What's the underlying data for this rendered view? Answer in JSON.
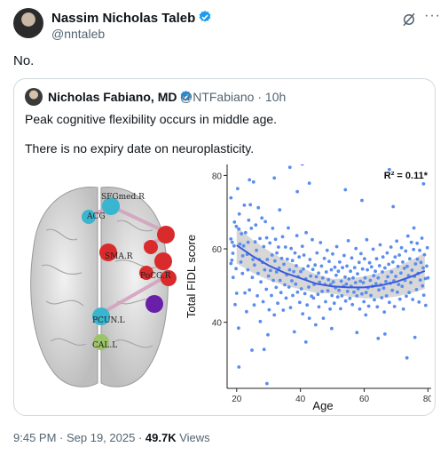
{
  "author": {
    "name": "Nassim Nicholas Taleb",
    "handle": "@nntaleb",
    "verified_color": "#1d9bf0"
  },
  "icons": [
    "verified-badge-icon",
    "grok-icon",
    "more-icon"
  ],
  "tweet": {
    "text": "No."
  },
  "quote": {
    "name": "Nicholas Fabiano, MD",
    "handle": "@NTFabiano",
    "time": "10h",
    "text1": "Peak cognitive flexibility occurs in middle age.",
    "text2": "There is no expiry date on neuroplasticity."
  },
  "brain_labels": [
    "SFGmed.R",
    "ACG",
    "SMA.R",
    "PoCG.R",
    "PCUN.L",
    "CAL.L"
  ],
  "meta": {
    "time": "9:45 PM",
    "date": "Sep 19, 2025",
    "views_count": "49.7K",
    "views_label": "Views"
  },
  "chart_data": {
    "type": "scatter",
    "xlabel": "Age",
    "ylabel": "Total FIDL score",
    "annotation": "R² = 0.11*",
    "xlim": [
      17,
      81
    ],
    "ylim": [
      22,
      83
    ],
    "xticks": [
      20,
      40,
      60,
      80
    ],
    "yticks": [
      40,
      60,
      80
    ],
    "point_color": "#5b8def",
    "fit_color": "#3b5bdb",
    "fit_curve": {
      "x": [
        20,
        25,
        30,
        35,
        40,
        45,
        50,
        55,
        60,
        65,
        70,
        75,
        79
      ],
      "y": [
        61,
        58,
        55.5,
        53.5,
        52,
        50.5,
        49.8,
        49.5,
        49.5,
        50,
        51,
        52.5,
        54
      ]
    },
    "points": [
      [
        18.2,
        56.0
      ],
      [
        18.2,
        62.7
      ],
      [
        18.2,
        73.9
      ],
      [
        18.5,
        56.9
      ],
      [
        18.6,
        61.8
      ],
      [
        18.8,
        58.8
      ],
      [
        18.9,
        52.2
      ],
      [
        19.2,
        60.8
      ],
      [
        19.3,
        67.3
      ],
      [
        19.5,
        44.8
      ],
      [
        19.8,
        54.6
      ],
      [
        19.9,
        66.1
      ],
      [
        20.0,
        47.9
      ],
      [
        20.3,
        76.4
      ],
      [
        20.6,
        38.4
      ],
      [
        20.7,
        65.4
      ],
      [
        20.8,
        69.5
      ],
      [
        21.0,
        61.3
      ],
      [
        21.3,
        56.4
      ],
      [
        21.5,
        64.1
      ],
      [
        21.8,
        53.3
      ],
      [
        21.9,
        58.1
      ],
      [
        22.2,
        60.8
      ],
      [
        22.4,
        71.9
      ],
      [
        22.6,
        48.0
      ],
      [
        22.8,
        64.4
      ],
      [
        23.1,
        42.9
      ],
      [
        23.3,
        58.5
      ],
      [
        23.5,
        54.3
      ],
      [
        23.6,
        61.8
      ],
      [
        23.8,
        67.8
      ],
      [
        24.0,
        48.8
      ],
      [
        24.3,
        72.0
      ],
      [
        24.6,
        65.6
      ],
      [
        24.9,
        52.2
      ],
      [
        25.1,
        57.1
      ],
      [
        25.3,
        78.2
      ],
      [
        25.5,
        44.7
      ],
      [
        25.6,
        55.6
      ],
      [
        25.8,
        61.9
      ],
      [
        26.0,
        66.5
      ],
      [
        26.2,
        59.6
      ],
      [
        26.5,
        47.2
      ],
      [
        26.7,
        53.3
      ],
      [
        26.8,
        71.2
      ],
      [
        27.1,
        57.1
      ],
      [
        27.3,
        62.8
      ],
      [
        27.4,
        40.2
      ],
      [
        27.6,
        51.0
      ],
      [
        27.9,
        68.4
      ],
      [
        28.1,
        56.3
      ],
      [
        28.3,
        45.6
      ],
      [
        28.5,
        60.6
      ],
      [
        28.6,
        32.6
      ],
      [
        28.8,
        54.3
      ],
      [
        29.0,
        67.4
      ],
      [
        29.3,
        49.0
      ],
      [
        29.4,
        63.0
      ],
      [
        29.6,
        57.1
      ],
      [
        29.8,
        36.6
      ],
      [
        30.0,
        52.6
      ],
      [
        30.2,
        43.4
      ],
      [
        30.4,
        61.6
      ],
      [
        30.6,
        54.1
      ],
      [
        30.9,
        47.3
      ],
      [
        31.1,
        58.3
      ],
      [
        31.3,
        65.6
      ],
      [
        31.5,
        51.4
      ],
      [
        31.8,
        42.0
      ],
      [
        32.0,
        56.7
      ],
      [
        32.2,
        62.6
      ],
      [
        32.4,
        49.5
      ],
      [
        32.5,
        53.7
      ],
      [
        32.6,
        58.9
      ],
      [
        32.9,
        45.2
      ],
      [
        33.1,
        60.5
      ],
      [
        33.3,
        54.8
      ],
      [
        33.5,
        70.6
      ],
      [
        33.6,
        51.4
      ],
      [
        33.9,
        48.1
      ],
      [
        34.1,
        57.4
      ],
      [
        34.4,
        63.3
      ],
      [
        34.6,
        43.3
      ],
      [
        34.8,
        55.8
      ],
      [
        35.1,
        50.2
      ],
      [
        35.3,
        60.5
      ],
      [
        35.5,
        46.6
      ],
      [
        35.7,
        52.9
      ],
      [
        35.9,
        57.2
      ],
      [
        36.2,
        65.7
      ],
      [
        36.4,
        49.6
      ],
      [
        36.6,
        54.3
      ],
      [
        36.9,
        44.0
      ],
      [
        37.1,
        60.1
      ],
      [
        37.3,
        51.3
      ],
      [
        37.5,
        56.8
      ],
      [
        37.6,
        47.3
      ],
      [
        37.9,
        53.8
      ],
      [
        38.1,
        37.4
      ],
      [
        38.3,
        58.9
      ],
      [
        38.5,
        50.4
      ],
      [
        38.7,
        55.4
      ],
      [
        38.9,
        63.6
      ],
      [
        39.1,
        48.2
      ],
      [
        39.3,
        52.4
      ],
      [
        39.6,
        57.8
      ],
      [
        39.8,
        45.4
      ],
      [
        40.1,
        53.8
      ],
      [
        40.3,
        49.1
      ],
      [
        40.6,
        60.7
      ],
      [
        40.7,
        42.3
      ],
      [
        40.9,
        54.5
      ],
      [
        41.1,
        58.3
      ],
      [
        41.4,
        47.8
      ],
      [
        41.7,
        51.8
      ],
      [
        41.8,
        64.4
      ],
      [
        42.1,
        44.7
      ],
      [
        42.4,
        55.3
      ],
      [
        42.6,
        49.6
      ],
      [
        42.8,
        41.1
      ],
      [
        43.0,
        57.1
      ],
      [
        43.2,
        52.6
      ],
      [
        43.5,
        47.1
      ],
      [
        43.7,
        62.5
      ],
      [
        43.9,
        54.4
      ],
      [
        44.1,
        46.6
      ],
      [
        44.3,
        50.3
      ],
      [
        44.6,
        55.6
      ],
      [
        44.8,
        39.3
      ],
      [
        45.0,
        52.4
      ],
      [
        45.2,
        58.9
      ],
      [
        45.5,
        47.6
      ],
      [
        45.7,
        53.4
      ],
      [
        45.8,
        44.2
      ],
      [
        46.0,
        50.9
      ],
      [
        46.3,
        61.7
      ],
      [
        46.6,
        55.3
      ],
      [
        46.8,
        48.4
      ],
      [
        47.0,
        52.1
      ],
      [
        47.2,
        41.1
      ],
      [
        47.5,
        57.4
      ],
      [
        47.7,
        50.3
      ],
      [
        47.9,
        45.6
      ],
      [
        48.1,
        53.7
      ],
      [
        48.4,
        59.6
      ],
      [
        48.6,
        48.6
      ],
      [
        48.8,
        51.6
      ],
      [
        49.0,
        56.6
      ],
      [
        49.3,
        43.6
      ],
      [
        49.5,
        50.3
      ],
      [
        49.7,
        54.3
      ],
      [
        49.9,
        47.3
      ],
      [
        50.1,
        58.6
      ],
      [
        50.3,
        51.0
      ],
      [
        50.6,
        45.2
      ],
      [
        50.8,
        55.0
      ],
      [
        51.0,
        49.4
      ],
      [
        51.2,
        52.8
      ],
      [
        51.4,
        60.6
      ],
      [
        51.7,
        46.9
      ],
      [
        51.9,
        53.9
      ],
      [
        52.1,
        48.7
      ],
      [
        52.3,
        56.4
      ],
      [
        52.6,
        43.7
      ],
      [
        52.8,
        51.2
      ],
      [
        53.0,
        47.2
      ],
      [
        53.2,
        54.9
      ],
      [
        53.5,
        49.8
      ],
      [
        53.7,
        58.2
      ],
      [
        54.0,
        52.3
      ],
      [
        54.2,
        45.8
      ],
      [
        54.4,
        50.4
      ],
      [
        54.6,
        55.3
      ],
      [
        54.8,
        48.4
      ],
      [
        55.0,
        62.2
      ],
      [
        55.2,
        51.8
      ],
      [
        55.5,
        46.5
      ],
      [
        55.7,
        53.9
      ],
      [
        55.9,
        49.8
      ],
      [
        56.1,
        57.5
      ],
      [
        56.3,
        44.8
      ],
      [
        56.5,
        52.1
      ],
      [
        56.8,
        48.2
      ],
      [
        57.0,
        54.9
      ],
      [
        57.3,
        50.8
      ],
      [
        57.4,
        60.1
      ],
      [
        57.7,
        47.2
      ],
      [
        57.9,
        53.2
      ],
      [
        58.1,
        49.1
      ],
      [
        58.4,
        56.3
      ],
      [
        58.6,
        43.6
      ],
      [
        58.8,
        51.2
      ],
      [
        59.0,
        58.7
      ],
      [
        59.3,
        47.7
      ],
      [
        59.5,
        54.5
      ],
      [
        59.7,
        50.8
      ],
      [
        59.9,
        45.6
      ],
      [
        60.1,
        57.3
      ],
      [
        60.3,
        52.1
      ],
      [
        60.6,
        48.1
      ],
      [
        60.8,
        62.5
      ],
      [
        61.0,
        54.3
      ],
      [
        61.2,
        49.4
      ],
      [
        61.4,
        44.4
      ],
      [
        61.7,
        56.2
      ],
      [
        61.9,
        51.4
      ],
      [
        62.1,
        47.3
      ],
      [
        62.3,
        55.1
      ],
      [
        62.6,
        49.8
      ],
      [
        62.8,
        59.9
      ],
      [
        63.0,
        52.7
      ],
      [
        63.2,
        46.1
      ],
      [
        63.5,
        53.9
      ],
      [
        63.7,
        50.5
      ],
      [
        63.9,
        57.3
      ],
      [
        64.1,
        44.2
      ],
      [
        64.4,
        52.1
      ],
      [
        64.6,
        48.8
      ],
      [
        64.8,
        55.4
      ],
      [
        65.0,
        61.1
      ],
      [
        65.2,
        50.2
      ],
      [
        65.5,
        46.7
      ],
      [
        65.7,
        53.7
      ],
      [
        65.9,
        57.8
      ],
      [
        66.1,
        49.3
      ],
      [
        66.3,
        42.8
      ],
      [
        66.5,
        54.8
      ],
      [
        66.8,
        51.1
      ],
      [
        67.0,
        47.2
      ],
      [
        67.2,
        58.9
      ],
      [
        67.4,
        52.4
      ],
      [
        67.7,
        55.8
      ],
      [
        67.9,
        45.4
      ],
      [
        68.2,
        50.6
      ],
      [
        68.4,
        60.5
      ],
      [
        68.6,
        53.7
      ],
      [
        68.8,
        48.7
      ],
      [
        69.0,
        56.4
      ],
      [
        69.3,
        51.3
      ],
      [
        69.5,
        44.3
      ],
      [
        69.7,
        57.8
      ],
      [
        69.9,
        52.5
      ],
      [
        70.2,
        62.1
      ],
      [
        70.4,
        48.2
      ],
      [
        70.6,
        55.2
      ],
      [
        70.8,
        50.3
      ],
      [
        71.0,
        58.3
      ],
      [
        71.2,
        46.3
      ],
      [
        71.5,
        53.4
      ],
      [
        71.7,
        60.3
      ],
      [
        71.9,
        49.8
      ],
      [
        72.1,
        56.4
      ],
      [
        72.3,
        43.6
      ],
      [
        72.6,
        54.7
      ],
      [
        72.8,
        51.4
      ],
      [
        73.0,
        59.4
      ],
      [
        73.2,
        47.1
      ],
      [
        73.5,
        55.2
      ],
      [
        73.7,
        63.5
      ],
      [
        73.9,
        52.7
      ],
      [
        74.1,
        48.1
      ],
      [
        74.3,
        57.3
      ],
      [
        74.6,
        50.8
      ],
      [
        74.8,
        61.8
      ],
      [
        75.0,
        54.2
      ],
      [
        75.2,
        46.2
      ],
      [
        75.5,
        59.8
      ],
      [
        75.6,
        65.7
      ],
      [
        75.8,
        52.5
      ],
      [
        76.1,
        55.9
      ],
      [
        76.4,
        48.9
      ],
      [
        76.6,
        61.5
      ],
      [
        76.7,
        57.2
      ],
      [
        76.9,
        53.3
      ],
      [
        77.2,
        45.5
      ],
      [
        77.4,
        59.6
      ],
      [
        77.6,
        51.5
      ],
      [
        77.8,
        56.3
      ],
      [
        78.1,
        62.9
      ],
      [
        78.3,
        49.9
      ],
      [
        78.5,
        54.8
      ],
      [
        78.7,
        47.4
      ],
      [
        78.9,
        58.4
      ],
      [
        79.2,
        51.9
      ],
      [
        79.3,
        44.6
      ],
      [
        79.6,
        55.3
      ],
      [
        79.8,
        60.3
      ],
      [
        80.0,
        52.1
      ],
      [
        41.7,
        34.6
      ],
      [
        20.7,
        27.8
      ],
      [
        24.0,
        78.8
      ],
      [
        24.8,
        32.4
      ],
      [
        29.5,
        23.3
      ],
      [
        31.8,
        79.3
      ],
      [
        36.7,
        82.2
      ],
      [
        39.0,
        75.6
      ],
      [
        40.6,
        83.1
      ],
      [
        42.8,
        77.9
      ],
      [
        49.8,
        38.3
      ],
      [
        54.1,
        76.1
      ],
      [
        57.7,
        37.2
      ],
      [
        59.3,
        73.2
      ],
      [
        64.4,
        35.6
      ],
      [
        66.5,
        36.8
      ],
      [
        67.9,
        81.6
      ],
      [
        69.1,
        71.5
      ],
      [
        73.4,
        30.3
      ],
      [
        75.9,
        35.9
      ],
      [
        78.6,
        77.7
      ],
      [
        60.5,
        42.0
      ]
    ]
  }
}
